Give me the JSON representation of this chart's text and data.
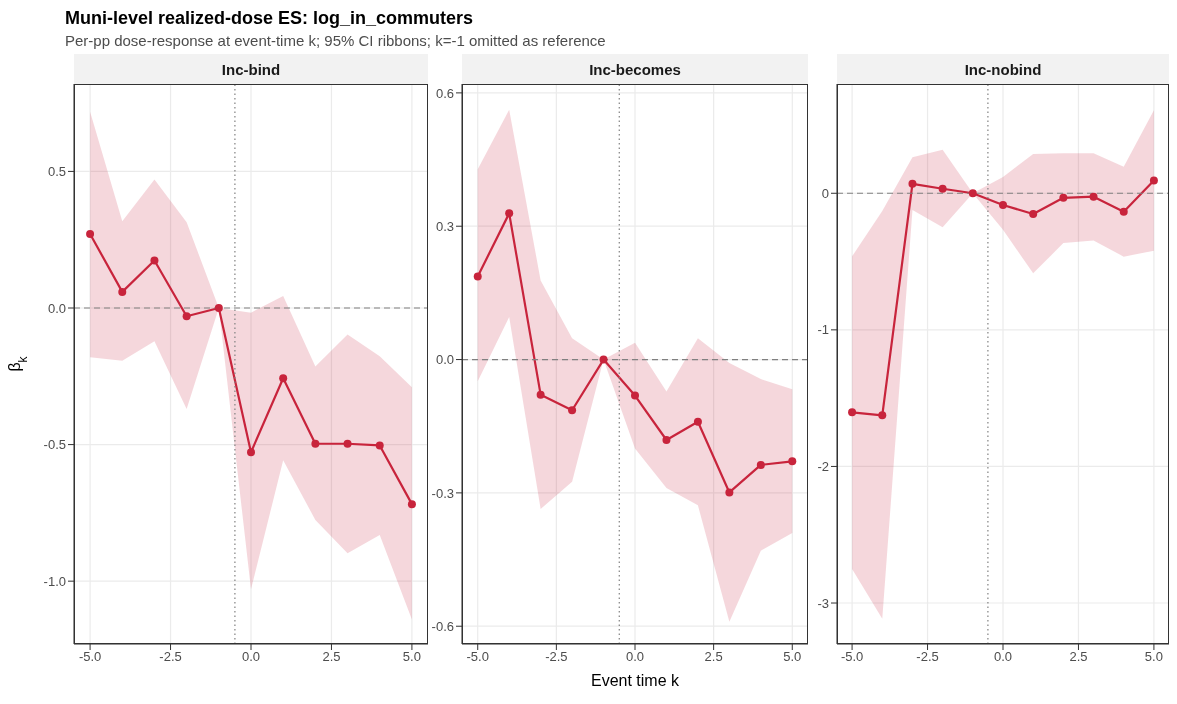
{
  "chart_data": [
    {
      "type": "line",
      "title": "Inc-bind",
      "annotations": [
        "Muni-level realized-dose ES: log_in_commuters",
        "Per-pp dose-response at event-time k; 95% CI ribbons; k=-1 omitted as reference"
      ],
      "ylabel": "β$_{k}$",
      "x": [
        -5,
        -4,
        -3,
        -2,
        -1,
        0,
        1,
        2,
        3,
        4,
        5
      ],
      "xlim": [
        -5.5,
        5.5
      ],
      "xticks": [
        {
          "value": -5,
          "label": "-5.0"
        },
        {
          "value": -2.5,
          "label": "-2.5"
        },
        {
          "value": 0,
          "label": "0.0"
        },
        {
          "value": 2.5,
          "label": "2.5"
        },
        {
          "value": 5,
          "label": "5.0"
        }
      ],
      "ylim": [
        -1.23,
        0.82
      ],
      "yticks": [
        {
          "value": -1,
          "label": "-1.0"
        },
        {
          "value": -0.5,
          "label": "-0.5"
        },
        {
          "value": 0,
          "label": "0.0"
        },
        {
          "value": 0.5,
          "label": "0.5"
        }
      ],
      "grid": true,
      "marker": "circle",
      "line_style": "solid",
      "series": [
        {
          "color": "#c8243c",
          "values": [
            0.271,
            0.059,
            0.174,
            -0.03,
            0,
            -0.528,
            -0.257,
            -0.497,
            -0.497,
            -0.503,
            -0.718
          ],
          "lower": [
            -0.18,
            -0.193,
            -0.122,
            -0.37,
            0,
            -1.03,
            -0.557,
            -0.776,
            -0.898,
            -0.831,
            -1.14
          ],
          "upper": [
            0.718,
            0.318,
            0.47,
            0.314,
            0,
            -0.017,
            0.044,
            -0.214,
            -0.097,
            -0.177,
            -0.29
          ]
        }
      ],
      "ref_lines": [
        {
          "axis": "y",
          "value": 0,
          "color": "#808080",
          "line_style": "dashed"
        },
        {
          "axis": "x",
          "value": -0.5,
          "color": "#808080",
          "line_style": "dotted"
        }
      ]
    },
    {
      "type": "line",
      "title": "Inc-becomes",
      "xlabel": "Event time k",
      "x": [
        -5,
        -4,
        -3,
        -2,
        -1,
        0,
        1,
        2,
        3,
        4,
        5
      ],
      "xlim": [
        -5.5,
        5.5
      ],
      "xticks": [
        {
          "value": -5,
          "label": "-5.0"
        },
        {
          "value": -2.5,
          "label": "-2.5"
        },
        {
          "value": 0,
          "label": "0.0"
        },
        {
          "value": 2.5,
          "label": "2.5"
        },
        {
          "value": 5,
          "label": "5.0"
        }
      ],
      "ylim": [
        -0.64,
        0.62
      ],
      "yticks": [
        -0.6,
        -0.3,
        {
          "value": 0,
          "label": "0.0"
        },
        0.3,
        0.6
      ],
      "grid": true,
      "marker": "circle",
      "line_style": "solid",
      "series": [
        {
          "color": "#c8243c",
          "values": [
            0.187,
            0.329,
            -0.079,
            -0.114,
            0,
            -0.081,
            -0.181,
            -0.14,
            -0.299,
            -0.237,
            -0.229
          ],
          "lower": [
            -0.049,
            0.096,
            -0.336,
            -0.275,
            0,
            -0.2,
            -0.289,
            -0.328,
            -0.59,
            -0.43,
            -0.39
          ],
          "upper": [
            0.428,
            0.562,
            0.178,
            0.048,
            0,
            0.038,
            -0.072,
            0.048,
            -0.008,
            -0.044,
            -0.067
          ]
        }
      ],
      "ref_lines": [
        {
          "axis": "y",
          "value": 0,
          "color": "#808080",
          "line_style": "dashed"
        },
        {
          "axis": "x",
          "value": -0.5,
          "color": "#808080",
          "line_style": "dotted"
        }
      ]
    },
    {
      "type": "line",
      "title": "Inc-nobind",
      "x": [
        -5,
        -4,
        -3,
        -2,
        -1,
        0,
        1,
        2,
        3,
        4,
        5
      ],
      "xlim": [
        -5.5,
        5.5
      ],
      "xticks": [
        {
          "value": -5,
          "label": "-5.0"
        },
        {
          "value": -2.5,
          "label": "-2.5"
        },
        {
          "value": 0,
          "label": "0.0"
        },
        {
          "value": 2.5,
          "label": "2.5"
        },
        {
          "value": 5,
          "label": "5.0"
        }
      ],
      "ylim": [
        -3.3,
        0.8
      ],
      "yticks": [
        -3,
        -2,
        -1,
        0
      ],
      "grid": true,
      "marker": "circle",
      "line_style": "solid",
      "series": [
        {
          "color": "#c8243c",
          "values": [
            -1.604,
            -1.626,
            0.069,
            0.033,
            0,
            -0.086,
            -0.152,
            -0.033,
            -0.025,
            -0.135,
            0.094
          ],
          "lower": [
            -2.75,
            -3.115,
            -0.122,
            -0.249,
            0,
            -0.268,
            -0.586,
            -0.365,
            -0.346,
            -0.464,
            -0.42
          ],
          "upper": [
            -0.462,
            -0.13,
            0.263,
            0.318,
            0,
            0.119,
            0.288,
            0.293,
            0.293,
            0.194,
            0.608
          ]
        }
      ],
      "ref_lines": [
        {
          "axis": "y",
          "value": 0,
          "color": "#808080",
          "line_style": "dashed"
        },
        {
          "axis": "x",
          "value": -0.5,
          "color": "#808080",
          "line_style": "dotted"
        }
      ]
    }
  ]
}
